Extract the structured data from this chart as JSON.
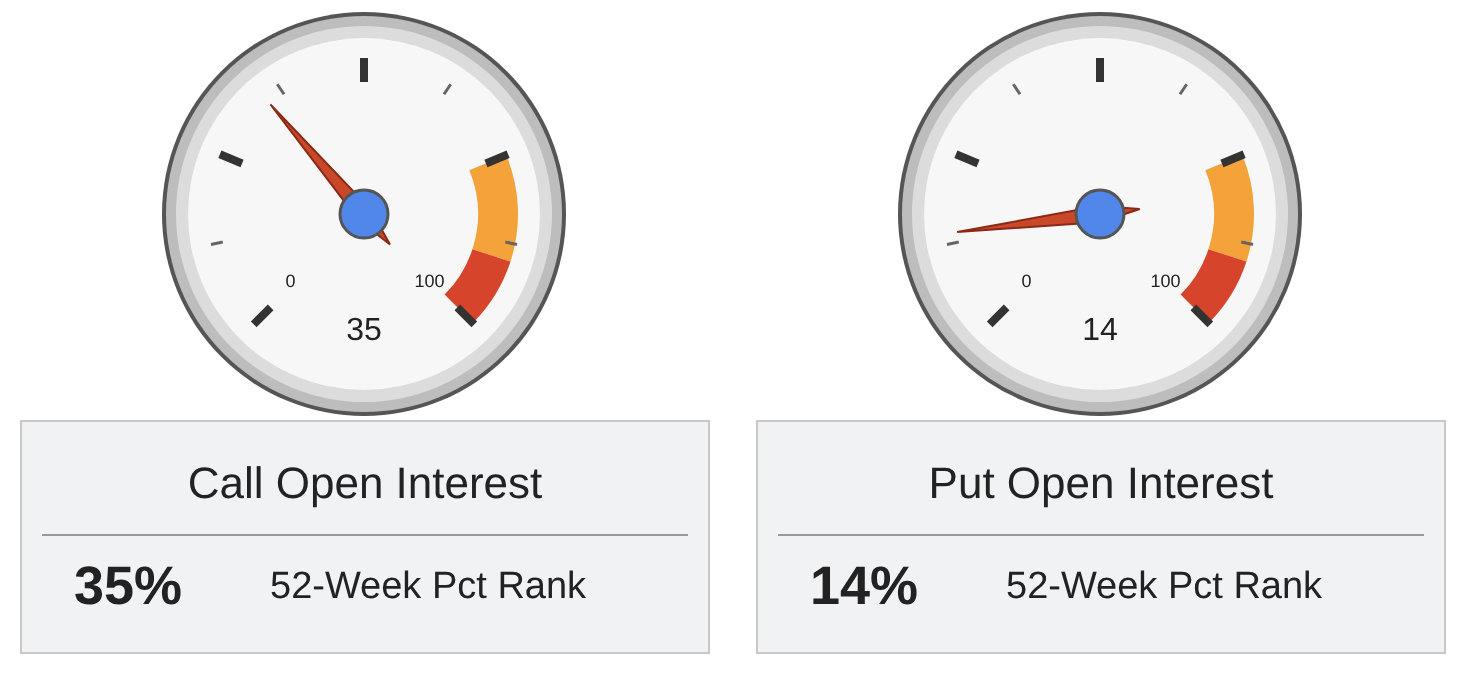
{
  "chart_data": [
    {
      "type": "other",
      "title": "Call Open Interest",
      "values": [
        35
      ],
      "value_labels": [
        "35%"
      ],
      "annotations": [
        "0",
        "100",
        "35",
        "52-Week Pct Rank"
      ]
    },
    {
      "type": "other",
      "title": "Put Open Interest",
      "values": [
        14
      ],
      "value_labels": [
        "14%"
      ],
      "annotations": [
        "0",
        "100",
        "14",
        "52-Week Pct Rank"
      ]
    }
  ]
}
